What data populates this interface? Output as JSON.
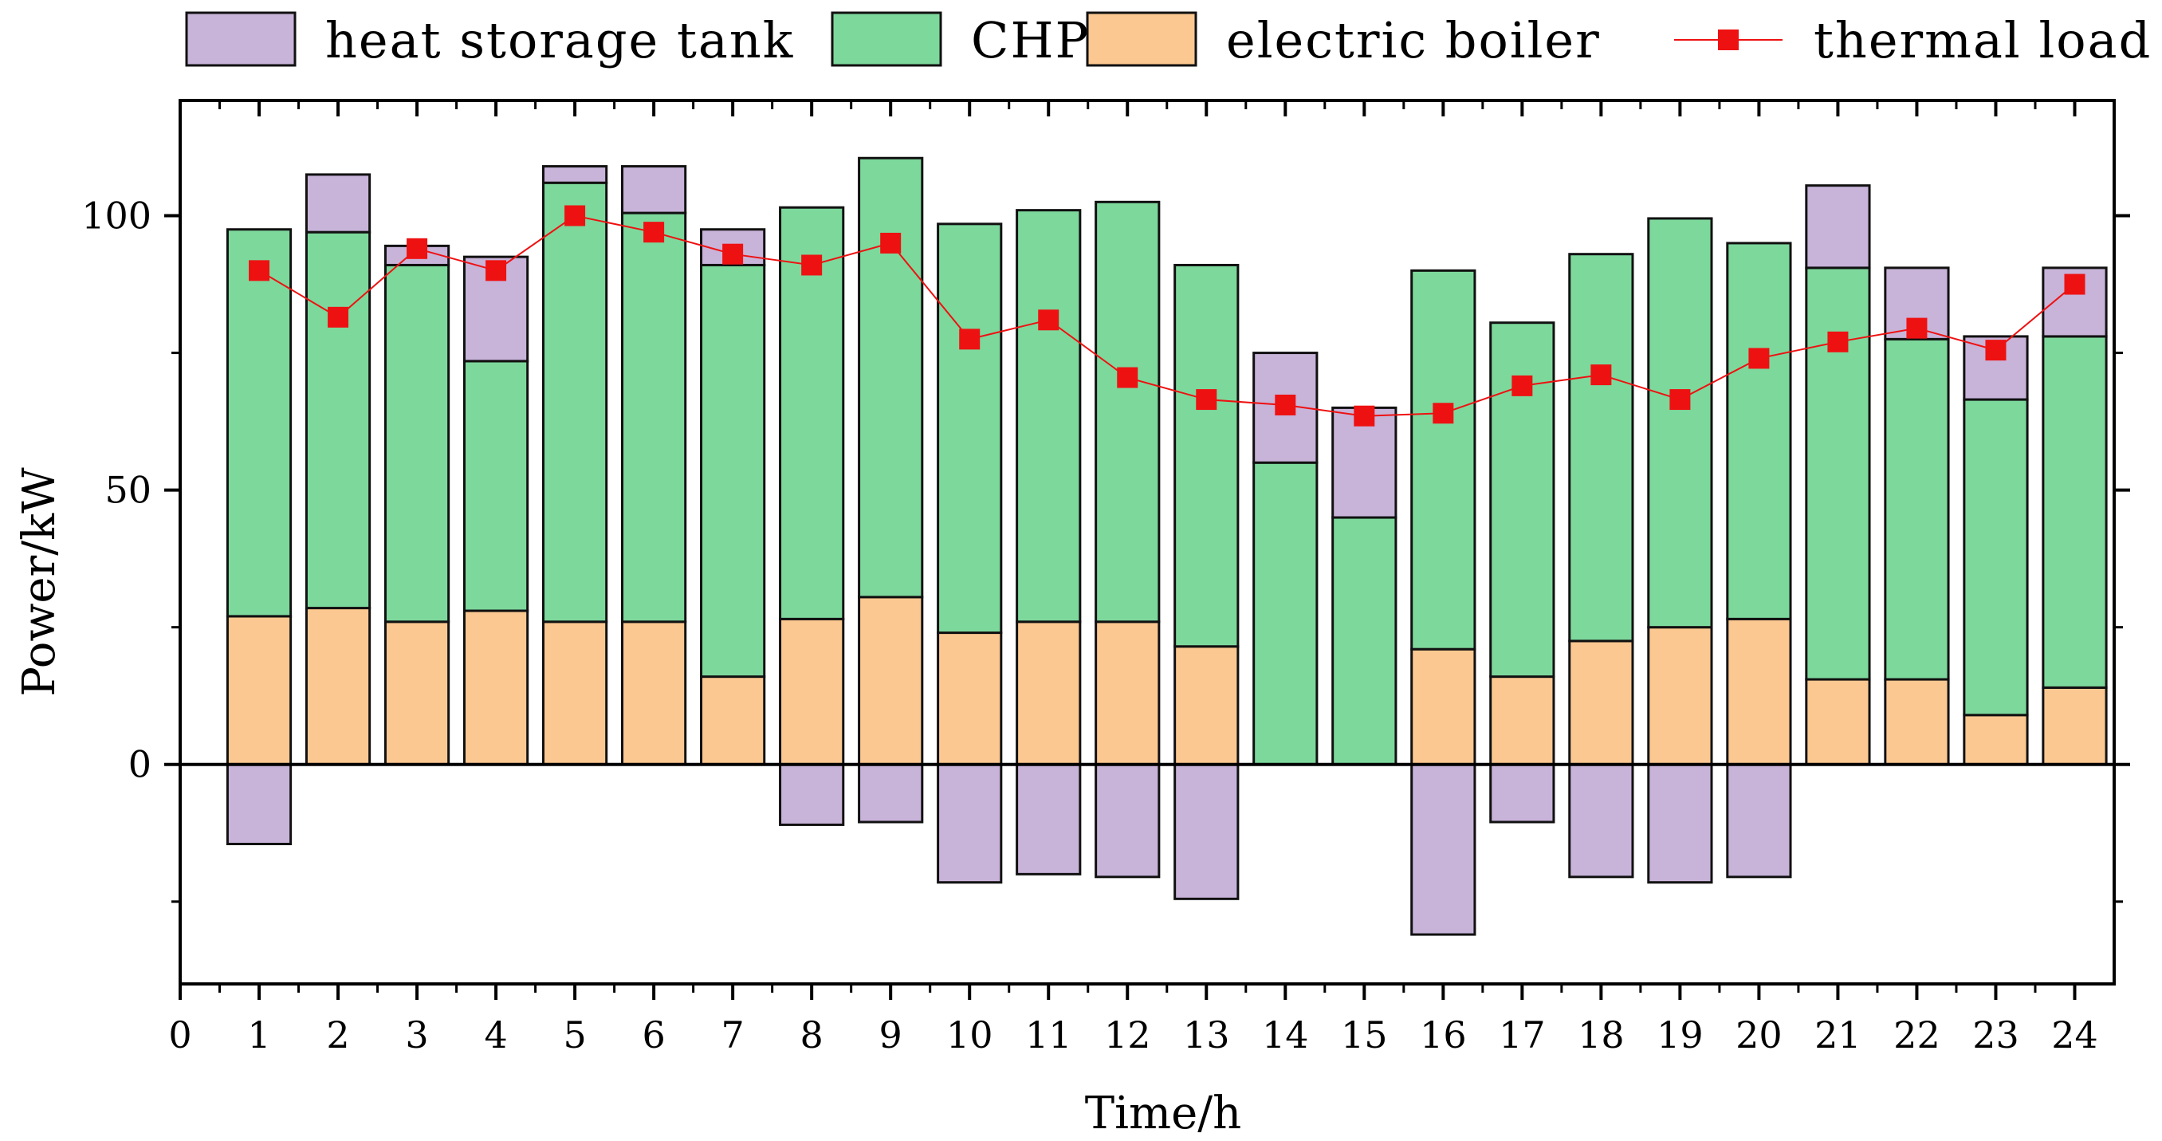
{
  "chart_data": {
    "type": "bar",
    "stacked": true,
    "title": "",
    "xlabel": "Time/h",
    "ylabel": "Power/kW",
    "xlim": [
      0,
      24.5
    ],
    "ylim": [
      -40,
      121
    ],
    "x_ticks": [
      0,
      1,
      2,
      3,
      4,
      5,
      6,
      7,
      8,
      9,
      10,
      11,
      12,
      13,
      14,
      15,
      16,
      17,
      18,
      19,
      20,
      21,
      22,
      23,
      24
    ],
    "y_ticks": [
      0,
      50,
      100
    ],
    "legend_position": "top",
    "categories": [
      1,
      2,
      3,
      4,
      5,
      6,
      7,
      8,
      9,
      10,
      11,
      12,
      13,
      14,
      15,
      16,
      17,
      18,
      19,
      20,
      21,
      22,
      23,
      24
    ],
    "series": [
      {
        "name": "electric boiler",
        "kind": "bar",
        "color": "#fcc891",
        "values": [
          27,
          28.5,
          26,
          28,
          26,
          26,
          16,
          26.5,
          30.5,
          24,
          26,
          26,
          21.5,
          0,
          0,
          21,
          16,
          22.5,
          25,
          26.5,
          15.5,
          15.5,
          9,
          14
        ]
      },
      {
        "name": "CHP",
        "kind": "bar",
        "color": "#7dd89c",
        "values": [
          70.5,
          68.5,
          65,
          45.5,
          80,
          74.5,
          75,
          75,
          80,
          74.5,
          75,
          76.5,
          69.5,
          55,
          45,
          69,
          64.5,
          70.5,
          74.5,
          68.5,
          75,
          62,
          57.5,
          64
        ]
      },
      {
        "name": "heat storage tank",
        "kind": "bar",
        "color": "#c8b3d9",
        "values": [
          -14.5,
          10.5,
          3.5,
          19,
          3,
          8.5,
          6.5,
          -11,
          -10.5,
          -21.5,
          -20,
          -20.5,
          -24.5,
          20,
          20,
          -31,
          -10.5,
          -20.5,
          -21.5,
          -20.5,
          15,
          13,
          11.5,
          12.5
        ]
      },
      {
        "name": "thermal load",
        "kind": "line",
        "color": "#ee1111",
        "values": [
          90,
          81.5,
          94,
          90,
          100,
          97,
          93,
          91,
          95,
          77.5,
          81,
          70.5,
          66.5,
          65.5,
          63.5,
          64,
          69,
          71,
          66.5,
          74,
          77,
          79.5,
          75.5,
          87.5
        ]
      }
    ]
  }
}
